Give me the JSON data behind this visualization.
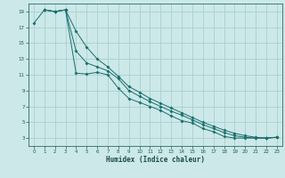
{
  "xlabel": "Humidex (Indice chaleur)",
  "bg_color": "#cce8e8",
  "grid_color": "#aacfcf",
  "line_color": "#1a6e6e",
  "xlim": [
    -0.5,
    23.5
  ],
  "ylim": [
    2,
    20
  ],
  "xticks": [
    0,
    1,
    2,
    3,
    4,
    5,
    6,
    7,
    8,
    9,
    10,
    11,
    12,
    13,
    14,
    15,
    16,
    17,
    18,
    19,
    20,
    21,
    22,
    23
  ],
  "yticks": [
    3,
    5,
    7,
    9,
    11,
    13,
    15,
    17,
    19
  ],
  "line1_x": [
    0,
    1,
    2,
    3,
    4,
    5,
    6,
    7,
    8,
    9,
    10,
    11,
    12,
    13,
    14,
    15,
    16,
    17,
    18,
    19,
    20,
    21,
    22,
    23
  ],
  "line1_y": [
    17.5,
    19.2,
    19.0,
    19.2,
    11.2,
    11.1,
    11.3,
    11.0,
    9.3,
    8.0,
    7.5,
    7.0,
    6.5,
    5.8,
    5.2,
    4.9,
    4.2,
    3.8,
    3.2,
    3.0,
    3.0,
    3.0,
    3.0,
    3.1
  ],
  "line2_x": [
    1,
    2,
    3,
    4,
    5,
    6,
    7,
    8,
    9,
    10,
    11,
    12,
    13,
    14,
    15,
    16,
    17,
    18,
    19,
    20,
    21,
    22,
    23
  ],
  "line2_y": [
    19.2,
    19.0,
    19.2,
    16.5,
    14.5,
    13.0,
    12.0,
    10.8,
    9.5,
    8.8,
    8.0,
    7.4,
    6.8,
    6.2,
    5.6,
    5.0,
    4.5,
    4.0,
    3.6,
    3.3,
    3.1,
    3.0,
    3.1
  ],
  "line3_x": [
    1,
    2,
    3,
    4,
    5,
    6,
    7,
    8,
    9,
    10,
    11,
    12,
    13,
    14,
    15,
    16,
    17,
    18,
    19,
    20,
    21,
    22,
    23
  ],
  "line3_y": [
    19.2,
    19.0,
    19.2,
    14.0,
    12.5,
    12.0,
    11.5,
    10.5,
    9.0,
    8.3,
    7.6,
    7.0,
    6.4,
    5.9,
    5.3,
    4.7,
    4.2,
    3.7,
    3.3,
    3.1,
    3.0,
    3.0,
    3.1
  ]
}
